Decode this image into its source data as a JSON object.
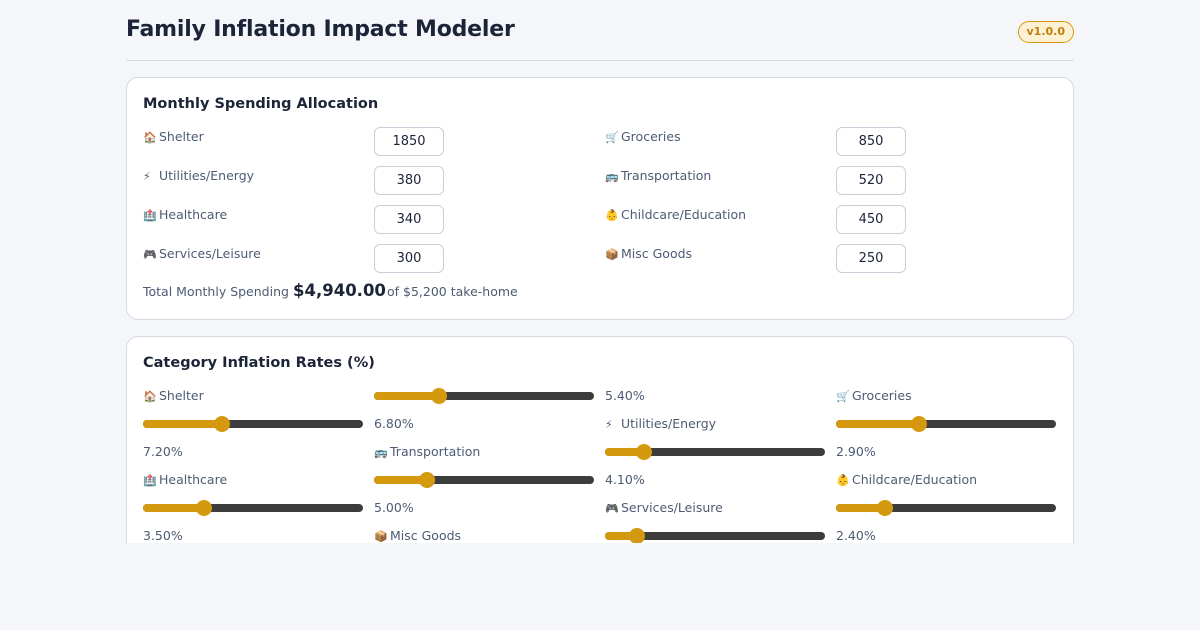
{
  "app": {
    "title": "Family Inflation Impact Modeler",
    "version": "v1.0.0"
  },
  "spending": {
    "title": "Monthly Spending Allocation",
    "items": [
      {
        "icon": "house-icon",
        "glyph": "🏠",
        "label": "Shelter",
        "value": "1850"
      },
      {
        "icon": "cart-icon",
        "glyph": "🛒",
        "label": "Groceries",
        "value": "850"
      },
      {
        "icon": "lightning-icon",
        "glyph": "⚡",
        "label": "Utilities/Energy",
        "value": "380"
      },
      {
        "icon": "bus-icon",
        "glyph": "🚌",
        "label": "Transportation",
        "value": "520"
      },
      {
        "icon": "hospital-icon",
        "glyph": "🏥",
        "label": "Healthcare",
        "value": "340"
      },
      {
        "icon": "baby-icon",
        "glyph": "👶",
        "label": "Childcare/Education",
        "value": "450"
      },
      {
        "icon": "gamepad-icon",
        "glyph": "🎮",
        "label": "Services/Leisure",
        "value": "300"
      },
      {
        "icon": "package-icon",
        "glyph": "📦",
        "label": "Misc Goods",
        "value": "250"
      }
    ],
    "total_label": "Total Monthly Spending",
    "total_value": "$4,940.00",
    "total_note": "of $5,200 take-home"
  },
  "rates": {
    "title": "Category Inflation Rates (%)",
    "items": [
      {
        "icon": "house-icon",
        "glyph": "🏠",
        "label": "Shelter",
        "value_text": "5.40%",
        "level": 0.28
      },
      {
        "icon": "cart-icon",
        "glyph": "🛒",
        "label": "Groceries",
        "value_text": "6.80%",
        "level": 0.35
      },
      {
        "icon": "lightning-icon",
        "glyph": "⚡",
        "label": "Utilities/Energy",
        "value_text": "7.20%",
        "level": 0.37
      },
      {
        "icon": "bus-icon",
        "glyph": "🚌",
        "label": "Transportation",
        "value_text": "2.90%",
        "level": 0.15
      },
      {
        "icon": "hospital-icon",
        "glyph": "🏥",
        "label": "Healthcare",
        "value_text": "4.10%",
        "level": 0.22
      },
      {
        "icon": "baby-icon",
        "glyph": "👶",
        "label": "Childcare/Education",
        "value_text": "5.00%",
        "level": 0.26
      },
      {
        "icon": "gamepad-icon",
        "glyph": "🎮",
        "label": "Services/Leisure",
        "value_text": "3.50%",
        "level": 0.2
      },
      {
        "icon": "package-icon",
        "glyph": "📦",
        "label": "Misc Goods",
        "value_text": "2.40%",
        "level": 0.12
      }
    ]
  },
  "colors": {
    "accent": "#d4990f",
    "track": "#3c3c3c",
    "background": "#f4f6fa"
  }
}
